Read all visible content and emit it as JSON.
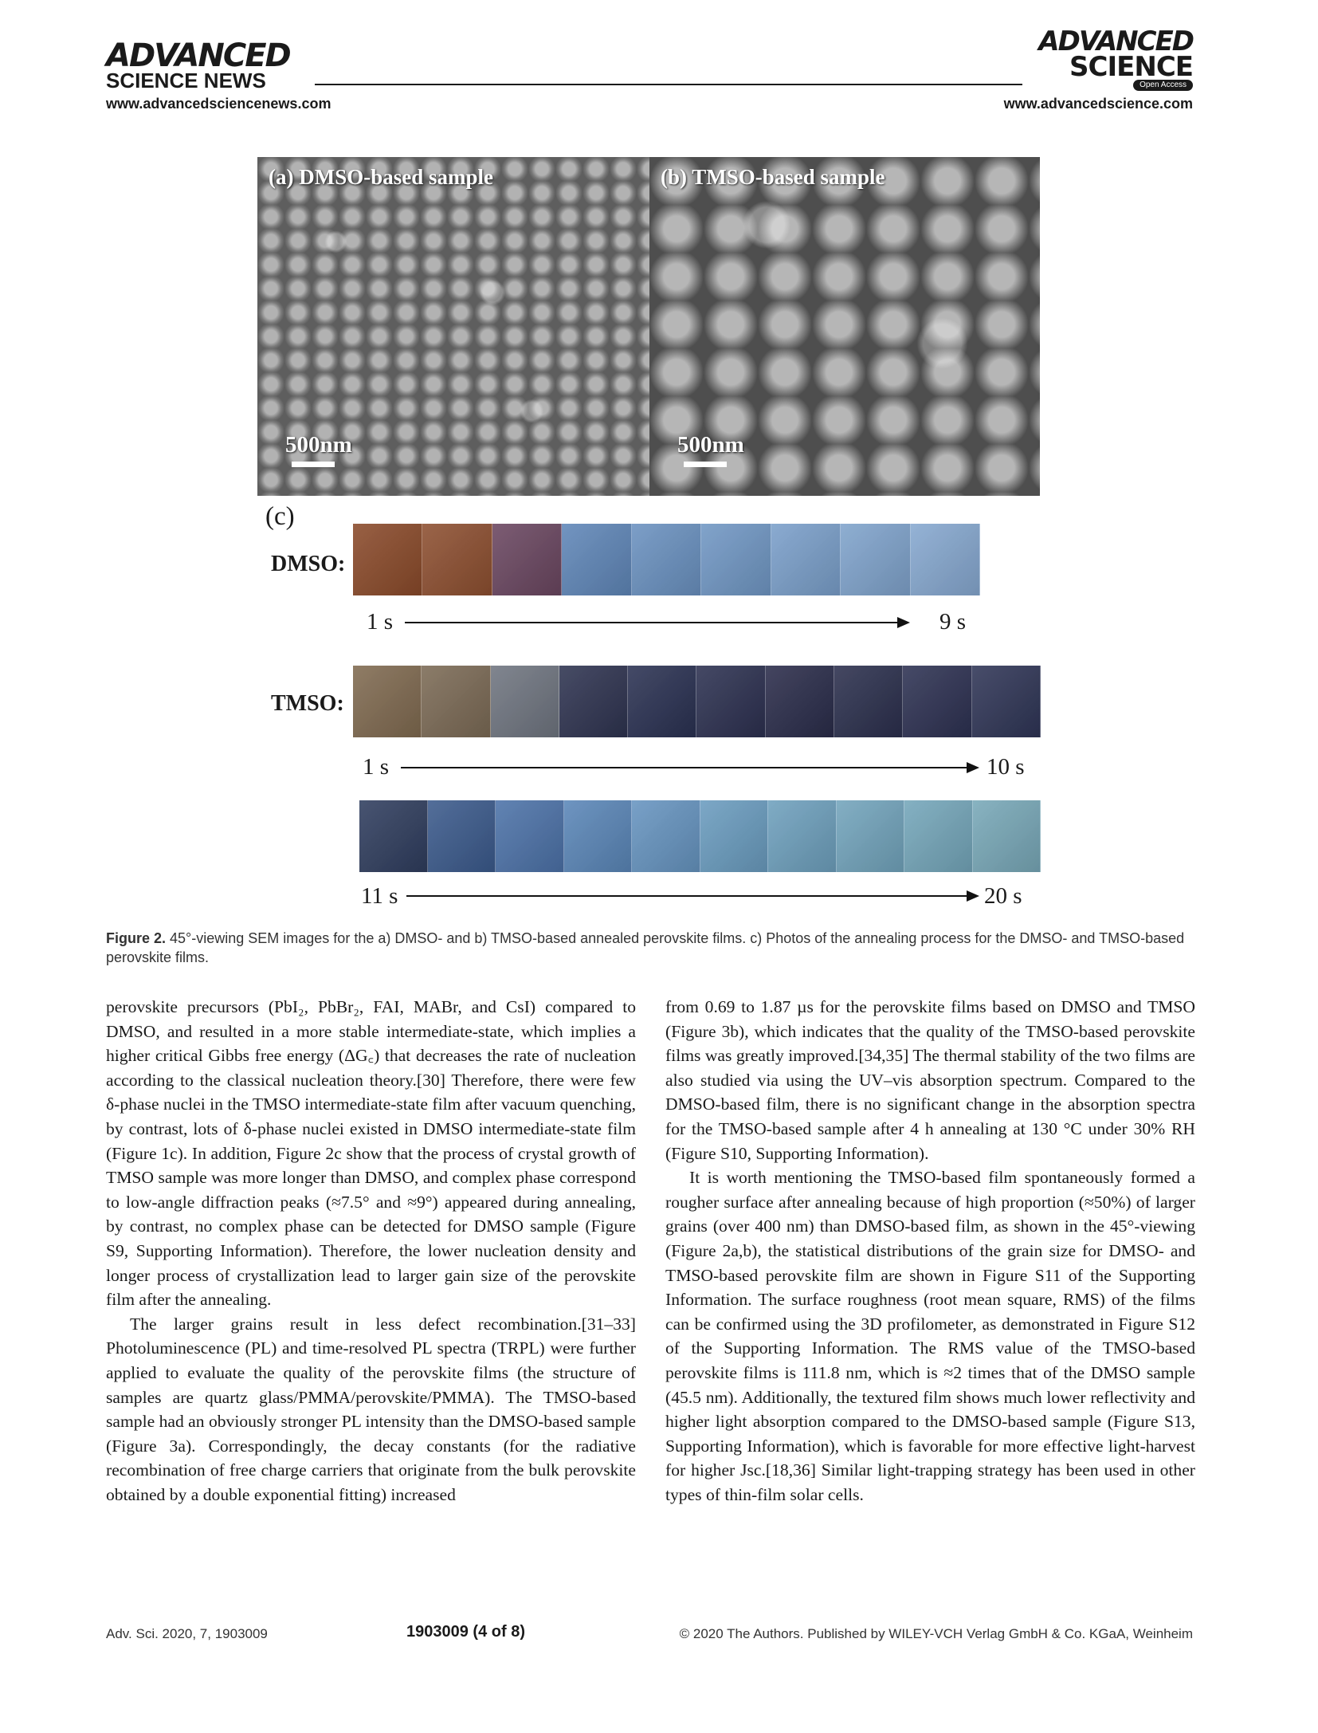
{
  "header": {
    "left_logo_line1": "ADVANCED",
    "left_logo_line2": "SCIENCE NEWS",
    "left_url": "www.advancedsciencenews.com",
    "right_logo_line1": "ADVANCED",
    "right_logo_line2": "SCIENCE",
    "open_access": "Open Access",
    "right_url": "www.advancedscience.com"
  },
  "figure": {
    "panel_a_label": "(a) DMSO-based sample",
    "panel_b_label": "(b) TMSO-based sample",
    "scale_a": "500nm",
    "scale_b": "500nm",
    "panel_c_label": "(c)",
    "dmso_label": "DMSO:",
    "tmso_label": "TMSO:",
    "dmso_start": "1 s",
    "dmso_end": "9 s",
    "tmso_start": "1 s",
    "tmso_end": "10 s",
    "tmso2_start": "11 s",
    "tmso2_end": "20 s",
    "dmso_tile_colors": [
      "#8a4a2a",
      "#8d4f30",
      "#6a4660",
      "#5f86b8",
      "#6a91c0",
      "#7097c4",
      "#7a9fca",
      "#7fa3cc",
      "#86a8d0"
    ],
    "tmso_tile_colors": [
      "#806a50",
      "#7b6a55",
      "#6f7580",
      "#2e3350",
      "#2a3152",
      "#2c3050",
      "#2a2c4a",
      "#2b2f4d",
      "#2d3152",
      "#2f3556"
    ],
    "tmso2_tile_colors": [
      "#2f3d5e",
      "#3b5a8c",
      "#4c72a8",
      "#5a86b8",
      "#6694c0",
      "#6a9cbf",
      "#6ea0bd",
      "#72a4bc",
      "#74a6ba",
      "#78a8b8"
    ]
  },
  "caption": {
    "label": "Figure 2.",
    "text": "45°-viewing SEM images for the a) DMSO- and b) TMSO-based annealed perovskite films. c) Photos of the annealing process for the DMSO- and TMSO-based perovskite films."
  },
  "body": {
    "left_p1": "perovskite precursors (PbI₂, PbBr₂, FAI, MABr, and CsI) compared to DMSO, and resulted in a more stable intermediate-state, which implies a higher critical Gibbs free energy (ΔG꜀) that decreases the rate of nucleation according to the classical nucleation theory.[30] Therefore, there were few δ-phase nuclei in the TMSO intermediate-state film after vacuum quenching, by contrast, lots of δ-phase nuclei existed in DMSO intermediate-state film (Figure 1c). In addition, Figure 2c show that the process of crystal growth of TMSO sample was more longer than DMSO, and complex phase correspond to low-angle diffraction peaks (≈7.5° and ≈9°) appeared during annealing, by contrast, no complex phase can be detected for DMSO sample (Figure S9, Supporting Information). Therefore, the lower nucleation density and longer process of crystallization lead to larger gain size of the perovskite film after the annealing.",
    "left_p2": "The larger grains result in less defect recombination.[31–33] Photoluminescence (PL) and time-resolved PL spectra (TRPL) were further applied to evaluate the quality of the perovskite films (the structure of samples are quartz glass/PMMA/perovskite/PMMA). The TMSO-based sample had an obviously stronger PL intensity than the DMSO-based sample (Figure 3a). Correspondingly, the decay constants (for the radiative recombination of free charge carriers that originate from the bulk perovskite obtained by a double exponential fitting) increased",
    "right_p1": "from 0.69 to 1.87 µs for the perovskite films based on DMSO and TMSO (Figure 3b), which indicates that the quality of the TMSO-based perovskite films was greatly improved.[34,35] The thermal stability of the two films are also studied via using the UV–vis absorption spectrum. Compared to the DMSO-based film, there is no significant change in the absorption spectra for the TMSO-based sample after 4 h annealing at 130 °C under 30% RH (Figure S10, Supporting Information).",
    "right_p2": "It is worth mentioning the TMSO-based film spontaneously formed a rougher surface after annealing because of high proportion (≈50%) of larger grains (over 400 nm) than DMSO-based film, as shown in the 45°-viewing (Figure 2a,b), the statistical distributions of the grain size for DMSO- and TMSO-based perovskite film are shown in Figure S11 of the Supporting Information. The surface roughness (root mean square, RMS) of the films can be confirmed using the 3D profilometer, as demonstrated in Figure S12 of the Supporting Information. The RMS value of the TMSO-based perovskite films is 111.8 nm, which is ≈2 times that of the DMSO sample (45.5 nm). Additionally, the textured film shows much lower reflectivity and higher light absorption compared to the DMSO-based sample (Figure S13, Supporting Information), which is favorable for more effective light-harvest for higher Jsc.[18,36] Similar light-trapping strategy has been used in other types of thin-film solar cells."
  },
  "footer": {
    "left": "Adv. Sci. 2020, 7, 1903009",
    "middle": "1903009  (4 of 8)",
    "right": "© 2020 The Authors. Published by WILEY-VCH Verlag GmbH & Co. KGaA, Weinheim"
  }
}
